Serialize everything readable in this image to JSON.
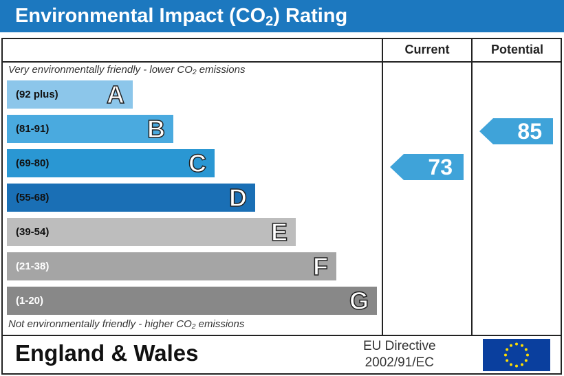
{
  "title": "Environmental Impact (CO",
  "title_sub": "2",
  "title_end": ") Rating",
  "columns": {
    "current": "Current",
    "potential": "Potential"
  },
  "top_note": "Very environmentally friendly - lower CO₂ emissions",
  "bottom_note": "Not environmentally friendly - higher CO₂ emissions",
  "bands": [
    {
      "range": "(92 plus)",
      "letter": "A",
      "color": "#8cc6ea",
      "text_color": "#111"
    },
    {
      "range": "(81-91)",
      "letter": "B",
      "color": "#4aaadf",
      "text_color": "#111"
    },
    {
      "range": "(69-80)",
      "letter": "C",
      "color": "#2a97d3",
      "text_color": "#111"
    },
    {
      "range": "(55-68)",
      "letter": "D",
      "color": "#1a6fb5",
      "text_color": "#111"
    },
    {
      "range": "(39-54)",
      "letter": "E",
      "color": "#bdbdbd",
      "text_color": "#111"
    },
    {
      "range": "(21-38)",
      "letter": "F",
      "color": "#a5a5a5",
      "text_color": "#fff"
    },
    {
      "range": "(1-20)",
      "letter": "G",
      "color": "#888888",
      "text_color": "#fff"
    }
  ],
  "current": {
    "value": "73",
    "band": "C"
  },
  "potential": {
    "value": "85",
    "band": "B"
  },
  "footer": {
    "region": "England & Wales",
    "directive_line1": "EU Directive",
    "directive_line2": "2002/91/EC",
    "flag": "eu-flag"
  }
}
